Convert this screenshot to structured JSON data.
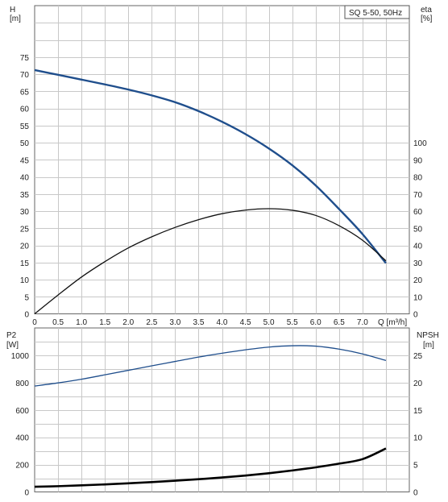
{
  "chart_data": [
    {
      "type": "line",
      "legend": "SQ 5-50, 50Hz",
      "x_axis": {
        "ticks": [
          "0",
          "0.5",
          "1.0",
          "1.5",
          "2.0",
          "2.5",
          "3.0",
          "3.5",
          "4.0",
          "4.5",
          "5.0",
          "5.5",
          "6.0",
          "6.5",
          "7.0"
        ],
        "label": "Q [m³/h]",
        "xlim": [
          0,
          8
        ]
      },
      "y_left": {
        "label_top": "H",
        "label_unit": "[m]",
        "ticks": [
          "0",
          "5",
          "10",
          "15",
          "20",
          "25",
          "30",
          "35",
          "40",
          "45",
          "50",
          "55",
          "60",
          "65",
          "70",
          "75"
        ],
        "ylim": [
          0,
          90
        ]
      },
      "y_right": {
        "label_top": "eta",
        "label_unit": "[%]",
        "ticks": [
          "0",
          "10",
          "20",
          "30",
          "40",
          "50",
          "60",
          "70",
          "80",
          "90",
          "100"
        ],
        "ylim": [
          0,
          180
        ]
      },
      "series": [
        {
          "axis": "left",
          "color": "#1f4e8c",
          "x": [
            0,
            0.5,
            1.0,
            1.5,
            2.0,
            2.5,
            3.0,
            3.5,
            4.0,
            4.5,
            5.0,
            5.5,
            6.0,
            6.5,
            7.0,
            7.5
          ],
          "values": [
            71.2,
            69.8,
            68.4,
            67.0,
            65.5,
            63.8,
            61.8,
            59.2,
            56.1,
            52.5,
            48.3,
            43.4,
            37.5,
            30.6,
            23.3,
            14.8
          ]
        },
        {
          "axis": "right",
          "color": "#111111",
          "x": [
            0,
            0.5,
            1.0,
            1.5,
            2.0,
            2.5,
            3.0,
            3.5,
            4.0,
            4.5,
            5.0,
            5.5,
            6.0,
            6.5,
            7.0,
            7.5
          ],
          "values": [
            0,
            11,
            21.5,
            30.5,
            38.5,
            45,
            50.5,
            55,
            58.5,
            60.6,
            61.4,
            60.5,
            57.5,
            51.5,
            43,
            31
          ]
        }
      ],
      "grid": true
    },
    {
      "type": "line",
      "x_axis": {
        "xlim": [
          0,
          8
        ]
      },
      "y_left": {
        "label_top": "P2",
        "label_unit": "[W]",
        "ticks": [
          "0",
          "200",
          "400",
          "600",
          "800",
          "1000"
        ],
        "ylim": [
          0,
          1200
        ]
      },
      "y_right": {
        "label_top": "NPSH",
        "label_unit": "[m]",
        "ticks": [
          "0",
          "5",
          "10",
          "15",
          "20",
          "25"
        ],
        "ylim": [
          0,
          30
        ]
      },
      "series": [
        {
          "axis": "left",
          "color": "#1f4e8c",
          "x": [
            0,
            0.5,
            1.0,
            1.5,
            2.0,
            2.5,
            3.0,
            3.5,
            4.0,
            4.5,
            5.0,
            5.5,
            6.0,
            6.5,
            7.0,
            7.5
          ],
          "values": [
            775,
            798,
            825,
            857,
            890,
            923,
            955,
            987,
            1015,
            1040,
            1060,
            1070,
            1067,
            1045,
            1010,
            962
          ]
        },
        {
          "axis": "left",
          "color": "#000000",
          "x": [
            0,
            0.5,
            1.0,
            1.5,
            2.0,
            2.5,
            3.0,
            3.5,
            4.0,
            4.5,
            5.0,
            5.5,
            6.0,
            6.5,
            7.0,
            7.5
          ],
          "values": [
            38,
            42,
            48,
            55,
            63,
            72,
            82,
            93,
            106,
            120,
            137,
            157,
            180,
            207,
            240,
            318
          ]
        }
      ],
      "grid": true
    }
  ]
}
